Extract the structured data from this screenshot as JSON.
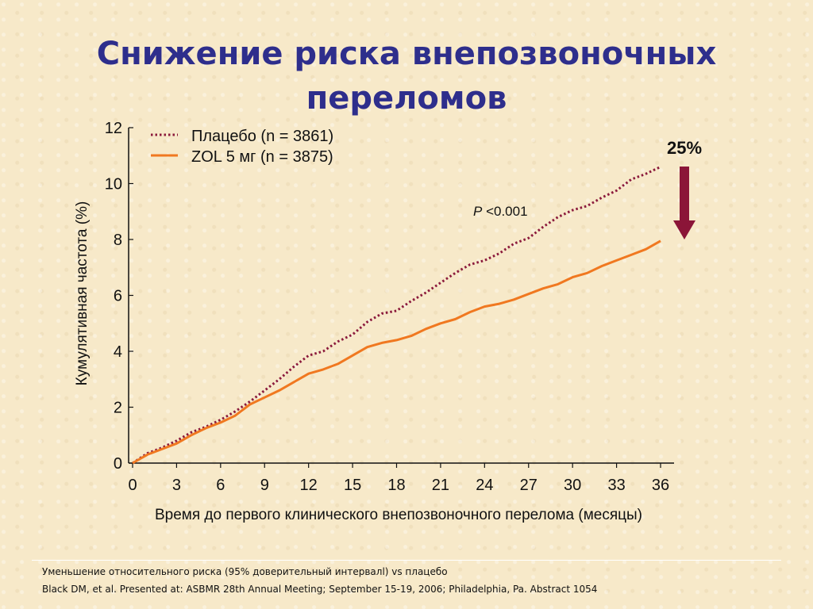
{
  "title": "Снижение риска  внепозвоночных\nпереломов",
  "colors": {
    "placebo": "#8b1a3c",
    "zol": "#f07820",
    "arrow": "#8b1538",
    "title": "#2e2e8c"
  },
  "chart_data": {
    "type": "line",
    "ylabel": "Кумулятивная частота (%)",
    "xlabel": "Время до первого клинического внепозвоночного перелома (месяцы)",
    "xlim": [
      0,
      36
    ],
    "ylim": [
      0,
      12
    ],
    "xticks": [
      0,
      3,
      6,
      9,
      12,
      15,
      18,
      21,
      24,
      27,
      30,
      33,
      36
    ],
    "yticks": [
      0,
      2,
      4,
      6,
      8,
      10,
      12
    ],
    "legend_position": "top-left",
    "series": [
      {
        "name": "Плацебо (n = 3861)",
        "style": "dotted",
        "x": [
          0,
          1,
          2,
          3,
          4,
          5,
          6,
          7,
          8,
          9,
          10,
          11,
          12,
          13,
          14,
          15,
          16,
          17,
          18,
          19,
          20,
          21,
          22,
          23,
          24,
          25,
          26,
          27,
          28,
          29,
          30,
          31,
          32,
          33,
          34,
          35,
          36
        ],
        "y": [
          0,
          0.35,
          0.55,
          0.8,
          1.1,
          1.3,
          1.55,
          1.85,
          2.2,
          2.6,
          3.0,
          3.45,
          3.85,
          4.0,
          4.35,
          4.6,
          5.05,
          5.35,
          5.45,
          5.8,
          6.1,
          6.45,
          6.8,
          7.1,
          7.25,
          7.5,
          7.85,
          8.05,
          8.45,
          8.8,
          9.05,
          9.2,
          9.5,
          9.75,
          10.15,
          10.35,
          10.6
        ]
      },
      {
        "name": "ZOL 5 мг (n = 3875)",
        "style": "solid",
        "x": [
          0,
          1,
          2,
          3,
          4,
          5,
          6,
          7,
          8,
          9,
          10,
          11,
          12,
          13,
          14,
          15,
          16,
          17,
          18,
          19,
          20,
          21,
          22,
          23,
          24,
          25,
          26,
          27,
          28,
          29,
          30,
          31,
          32,
          33,
          34,
          35,
          36
        ],
        "y": [
          0,
          0.3,
          0.5,
          0.7,
          1.0,
          1.25,
          1.45,
          1.7,
          2.1,
          2.35,
          2.6,
          2.9,
          3.2,
          3.35,
          3.55,
          3.85,
          4.15,
          4.3,
          4.4,
          4.55,
          4.8,
          5.0,
          5.15,
          5.4,
          5.6,
          5.7,
          5.85,
          6.05,
          6.25,
          6.4,
          6.65,
          6.8,
          7.05,
          7.25,
          7.45,
          7.65,
          7.95
        ]
      }
    ],
    "annotations": [
      {
        "text_italic": "P",
        "text": " <0.001"
      },
      {
        "text": "25%"
      }
    ]
  },
  "footnotes": [
    "Уменьшение относительного риска (95% доверительный интервалl) vs плацебо",
    "Black DM, et al. Presented at: ASBMR 28th Annual Meeting; September 15-19, 2006; Philadelphia, Pa. Abstract 1054"
  ]
}
